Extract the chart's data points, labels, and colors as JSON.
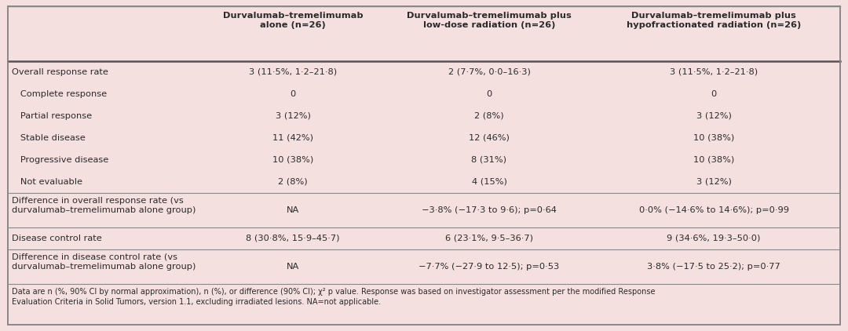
{
  "bg_color": "#f5e0e0",
  "border_color": "#888888",
  "text_color": "#2a2a2a",
  "header_fontsize": 8.2,
  "body_fontsize": 8.2,
  "footnote_fontsize": 7.0,
  "col_headers": [
    "Durvalumab–tremelimumab\nalone (n=26)",
    "Durvalumab–tremelimumab plus\nlow-dose radiation (n=26)",
    "Durvalumab–tremelimumab plus\nhypofractionated radiation (n=26)"
  ],
  "rows": [
    {
      "label": "Overall response rate",
      "indent": false,
      "values": [
        "3 (11·5%, 1·2–21·8)",
        "2 (7·7%, 0·0–16·3)",
        "3 (11·5%, 1·2–21·8)"
      ],
      "multiline_label": false,
      "separator_below": false,
      "thick_separator_below": false
    },
    {
      "label": "   Complete response",
      "indent": false,
      "values": [
        "0",
        "0",
        "0"
      ],
      "multiline_label": false,
      "separator_below": false,
      "thick_separator_below": false
    },
    {
      "label": "   Partial response",
      "indent": false,
      "values": [
        "3 (12%)",
        "2 (8%)",
        "3 (12%)"
      ],
      "multiline_label": false,
      "separator_below": false,
      "thick_separator_below": false
    },
    {
      "label": "   Stable disease",
      "indent": false,
      "values": [
        "11 (42%)",
        "12 (46%)",
        "10 (38%)"
      ],
      "multiline_label": false,
      "separator_below": false,
      "thick_separator_below": false
    },
    {
      "label": "   Progressive disease",
      "indent": false,
      "values": [
        "10 (38%)",
        "8 (31%)",
        "10 (38%)"
      ],
      "multiline_label": false,
      "separator_below": false,
      "thick_separator_below": false
    },
    {
      "label": "   Not evaluable",
      "indent": false,
      "values": [
        "2 (8%)",
        "4 (15%)",
        "3 (12%)"
      ],
      "multiline_label": false,
      "separator_below": true,
      "thick_separator_below": false
    },
    {
      "label": "Difference in overall response rate (vs\ndurvalumab–tremelimumab alone group)",
      "indent": false,
      "values": [
        "NA",
        "−3·8% (−17·3 to 9·6); p=0·64",
        "0·0% (−14·6% to 14·6%); p=0·99"
      ],
      "multiline_label": true,
      "separator_below": true,
      "thick_separator_below": false
    },
    {
      "label": "Disease control rate",
      "indent": false,
      "values": [
        "8 (30·8%, 15·9–45·7)",
        "6 (23·1%, 9·5–36·7)",
        "9 (34·6%, 19·3–50·0)"
      ],
      "multiline_label": false,
      "separator_below": true,
      "thick_separator_below": false
    },
    {
      "label": "Difference in disease control rate (vs\ndurvalumab–tremelimumab alone group)",
      "indent": false,
      "values": [
        "NA",
        "−7·7% (−27·9 to 12·5); p=0·53",
        "3·8% (−17·5 to 25·2); p=0·77"
      ],
      "multiline_label": true,
      "separator_below": false,
      "thick_separator_below": false
    }
  ],
  "footnote_line1": "Data are n (%, 90% CI by normal approximation), n (%), or difference (90% CI); χ² p value. Response was based on investigator assessment per the modified Response",
  "footnote_line2": "Evaluation Criteria in Solid Tumors, version 1.1, excluding irradiated lesions. NA=not applicable."
}
